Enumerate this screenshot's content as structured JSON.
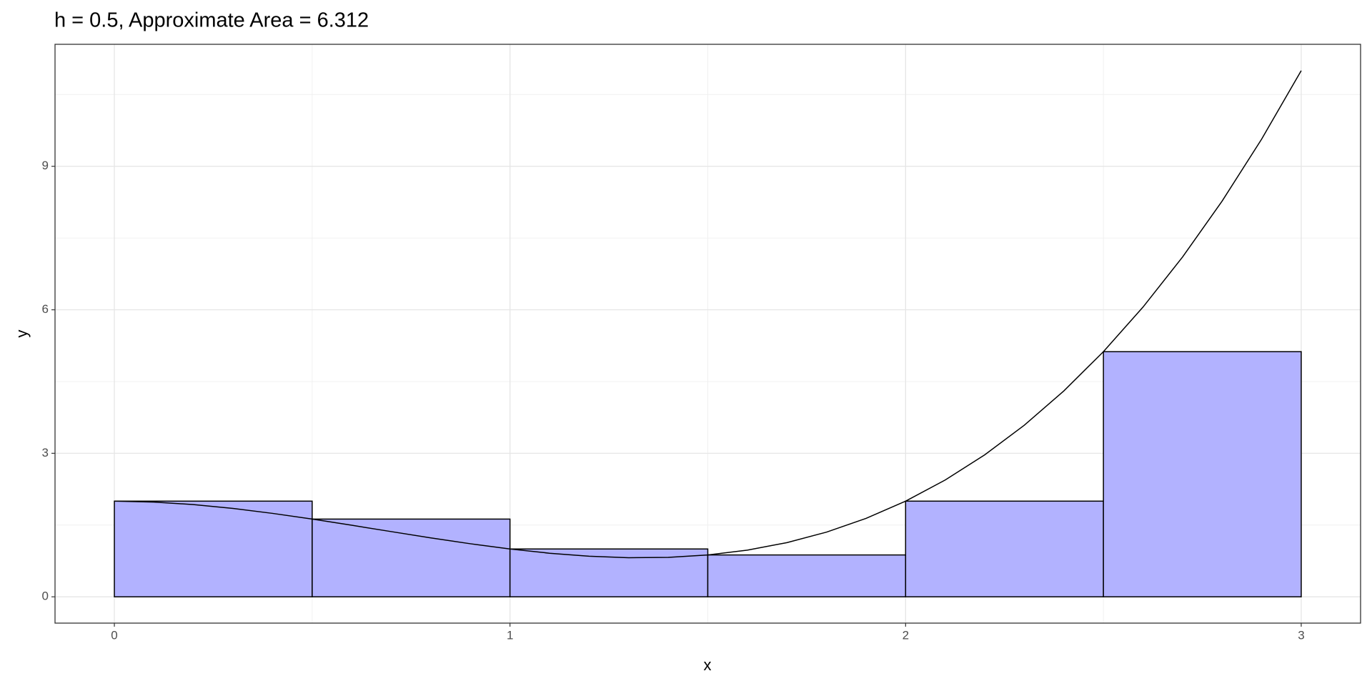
{
  "chart_data": {
    "type": "histogram",
    "title": "h = 0.5, Approximate Area = 6.312",
    "x_label": "x",
    "y_label": "y",
    "bins": [
      0,
      0.5,
      1,
      1.5,
      2,
      2.5,
      3
    ],
    "values": [
      2,
      1.625,
      1,
      0.875,
      2,
      5.125
    ],
    "color": "#b2b2ff",
    "edge_color": "#000000",
    "curve": {
      "type": "line",
      "color": "#000000",
      "x": [
        0,
        0.1,
        0.2,
        0.3,
        0.4,
        0.5,
        0.6,
        0.7,
        0.8,
        0.9,
        1,
        1.1,
        1.2,
        1.3,
        1.4,
        1.5,
        1.6,
        1.7,
        1.8,
        1.9,
        2,
        2.1,
        2.2,
        2.3,
        2.4,
        2.5,
        2.6,
        2.7,
        2.8,
        2.9,
        3
      ],
      "values": [
        2,
        1.981,
        1.928,
        1.847,
        1.744,
        1.625,
        1.496,
        1.363,
        1.232,
        1.109,
        1,
        0.911,
        0.848,
        0.817,
        0.824,
        0.875,
        0.976,
        1.133,
        1.352,
        1.639,
        2,
        2.441,
        2.968,
        3.587,
        4.304,
        5.125,
        6.056,
        7.103,
        8.272,
        9.569,
        11
      ]
    },
    "xlim": [
      -0.15,
      3.15
    ],
    "ylim": [
      -0.55,
      11.55
    ],
    "xticks": [
      0,
      1,
      2,
      3
    ],
    "yticks": [
      0,
      3,
      6,
      9
    ],
    "x_minor_grid": [
      0.5,
      1.5,
      2.5
    ],
    "y_minor_grid": [
      1.5,
      4.5,
      7.5,
      10.5
    ],
    "grid": true
  }
}
